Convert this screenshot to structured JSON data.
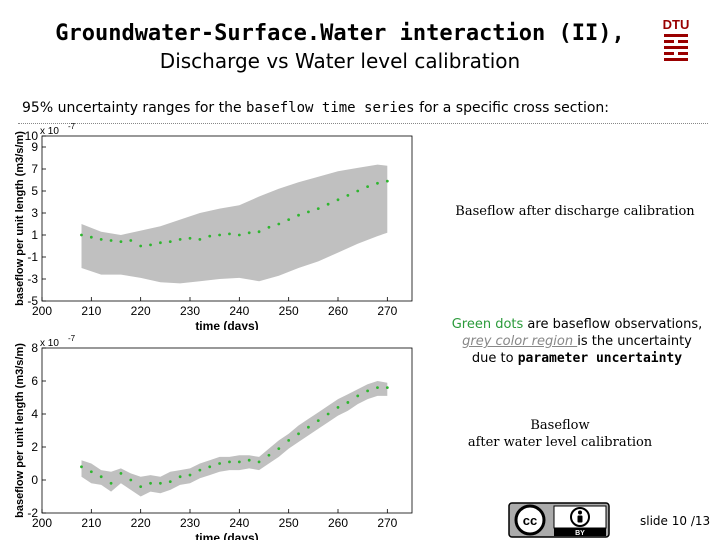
{
  "title": {
    "line1": "Groundwater-Surface.Water interaction (II),",
    "line2": "Discharge vs Water level calibration"
  },
  "subtitle": {
    "pre": "95% uncertainty ranges  for the",
    "bold": "baseflow time series",
    "post": "for a specific cross section:"
  },
  "notes": {
    "discharge": "Baseflow after discharge calibration",
    "green_dots": "Green dots",
    "legend_mid": " are baseflow observations,",
    "grey_region": "grey color region ",
    "legend_end": "is the uncertainty",
    "due_to": "due to ",
    "param_unc": "parameter uncertainty",
    "water_level_1": "Baseflow",
    "water_level_2": "after water level calibration"
  },
  "slide_number": "slide 10 /13",
  "logo_text": "DTU",
  "license": {
    "cc": "cc",
    "by": "BY"
  },
  "colors": {
    "band": "#c0c0c0",
    "dots": "#2fb52f",
    "logo": "#990000"
  },
  "chart_data": [
    {
      "type": "area",
      "title": "Baseflow after discharge calibration",
      "xlabel": "time (days)",
      "ylabel": "baseflow per unit length (m3/s/m)",
      "exponent_label": "x 10",
      "exponent_power": "-7",
      "xlim": [
        200,
        275
      ],
      "ylim": [
        -5,
        10
      ],
      "xticks": [
        200,
        210,
        220,
        230,
        240,
        250,
        260,
        270
      ],
      "yticks": [
        -5,
        -3,
        -1,
        1,
        3,
        5,
        7,
        9,
        10
      ],
      "grid": false,
      "series": [
        {
          "name": "Green dots",
          "x": [
            208,
            210,
            212,
            214,
            216,
            218,
            220,
            222,
            224,
            226,
            228,
            230,
            232,
            234,
            236,
            238,
            240,
            242,
            244,
            246,
            248,
            250,
            252,
            254,
            256,
            258,
            260,
            262,
            264,
            266,
            268,
            270
          ],
          "y": [
            1.0,
            0.8,
            0.6,
            0.5,
            0.4,
            0.5,
            0.0,
            0.1,
            0.3,
            0.4,
            0.6,
            0.7,
            0.6,
            0.9,
            1.0,
            1.1,
            1.0,
            1.2,
            1.3,
            1.7,
            2.0,
            2.4,
            2.8,
            3.1,
            3.4,
            3.8,
            4.2,
            4.6,
            5.0,
            5.4,
            5.7,
            5.9
          ]
        },
        {
          "name": "grey color region",
          "x": [
            208,
            212,
            216,
            220,
            224,
            228,
            232,
            236,
            240,
            244,
            248,
            252,
            256,
            260,
            264,
            268,
            270
          ],
          "upper": [
            2.0,
            1.3,
            1.0,
            1.4,
            1.8,
            2.4,
            3.0,
            3.4,
            3.7,
            4.5,
            5.2,
            5.8,
            6.3,
            6.8,
            7.1,
            7.4,
            7.3
          ],
          "lower": [
            -2.0,
            -2.6,
            -2.6,
            -2.9,
            -3.3,
            -3.4,
            -3.2,
            -3.0,
            -2.9,
            -3.2,
            -2.7,
            -2.0,
            -1.4,
            -0.6,
            0.2,
            0.9,
            1.2
          ]
        }
      ]
    },
    {
      "type": "area",
      "title": "after water level calibration",
      "xlabel": "time (days)",
      "ylabel": "baseflow per unit length (m3/s/m)",
      "exponent_label": "x 10",
      "exponent_power": "-7",
      "xlim": [
        200,
        275
      ],
      "ylim": [
        -2,
        8
      ],
      "xticks": [
        200,
        210,
        220,
        230,
        240,
        250,
        260,
        270
      ],
      "yticks": [
        -2,
        0,
        2,
        4,
        6,
        8
      ],
      "grid": false,
      "series": [
        {
          "name": "Green dots",
          "x": [
            208,
            210,
            212,
            214,
            216,
            218,
            220,
            222,
            224,
            226,
            228,
            230,
            232,
            234,
            236,
            238,
            240,
            242,
            244,
            246,
            248,
            250,
            252,
            254,
            256,
            258,
            260,
            262,
            264,
            266,
            268,
            270
          ],
          "y": [
            0.8,
            0.5,
            0.2,
            -0.2,
            0.4,
            0.0,
            -0.4,
            -0.2,
            -0.2,
            -0.1,
            0.2,
            0.3,
            0.6,
            0.8,
            1.0,
            1.1,
            1.1,
            1.2,
            1.1,
            1.5,
            1.9,
            2.4,
            2.8,
            3.2,
            3.6,
            4.0,
            4.4,
            4.7,
            5.1,
            5.4,
            5.6,
            5.6
          ]
        },
        {
          "name": "grey color region",
          "x": [
            208,
            210,
            212,
            214,
            216,
            218,
            220,
            222,
            224,
            226,
            228,
            230,
            232,
            234,
            236,
            238,
            240,
            242,
            244,
            246,
            248,
            250,
            252,
            254,
            256,
            258,
            260,
            262,
            264,
            266,
            268,
            270
          ],
          "upper": [
            1.2,
            1.0,
            0.6,
            0.5,
            0.7,
            0.4,
            0.2,
            0.3,
            0.2,
            0.5,
            0.6,
            0.7,
            1.0,
            1.2,
            1.4,
            1.4,
            1.5,
            1.5,
            1.4,
            1.9,
            2.4,
            2.8,
            3.3,
            3.7,
            4.1,
            4.5,
            4.9,
            5.2,
            5.5,
            5.8,
            6.0,
            5.9
          ],
          "lower": [
            0.2,
            -0.2,
            -0.3,
            -0.7,
            -0.2,
            -0.6,
            -1.0,
            -0.7,
            -0.8,
            -0.6,
            -0.3,
            -0.2,
            0.1,
            0.3,
            0.5,
            0.6,
            0.6,
            0.7,
            0.6,
            1.0,
            1.4,
            1.9,
            2.3,
            2.7,
            3.1,
            3.5,
            3.9,
            4.2,
            4.6,
            4.9,
            5.1,
            5.1
          ]
        }
      ]
    }
  ]
}
